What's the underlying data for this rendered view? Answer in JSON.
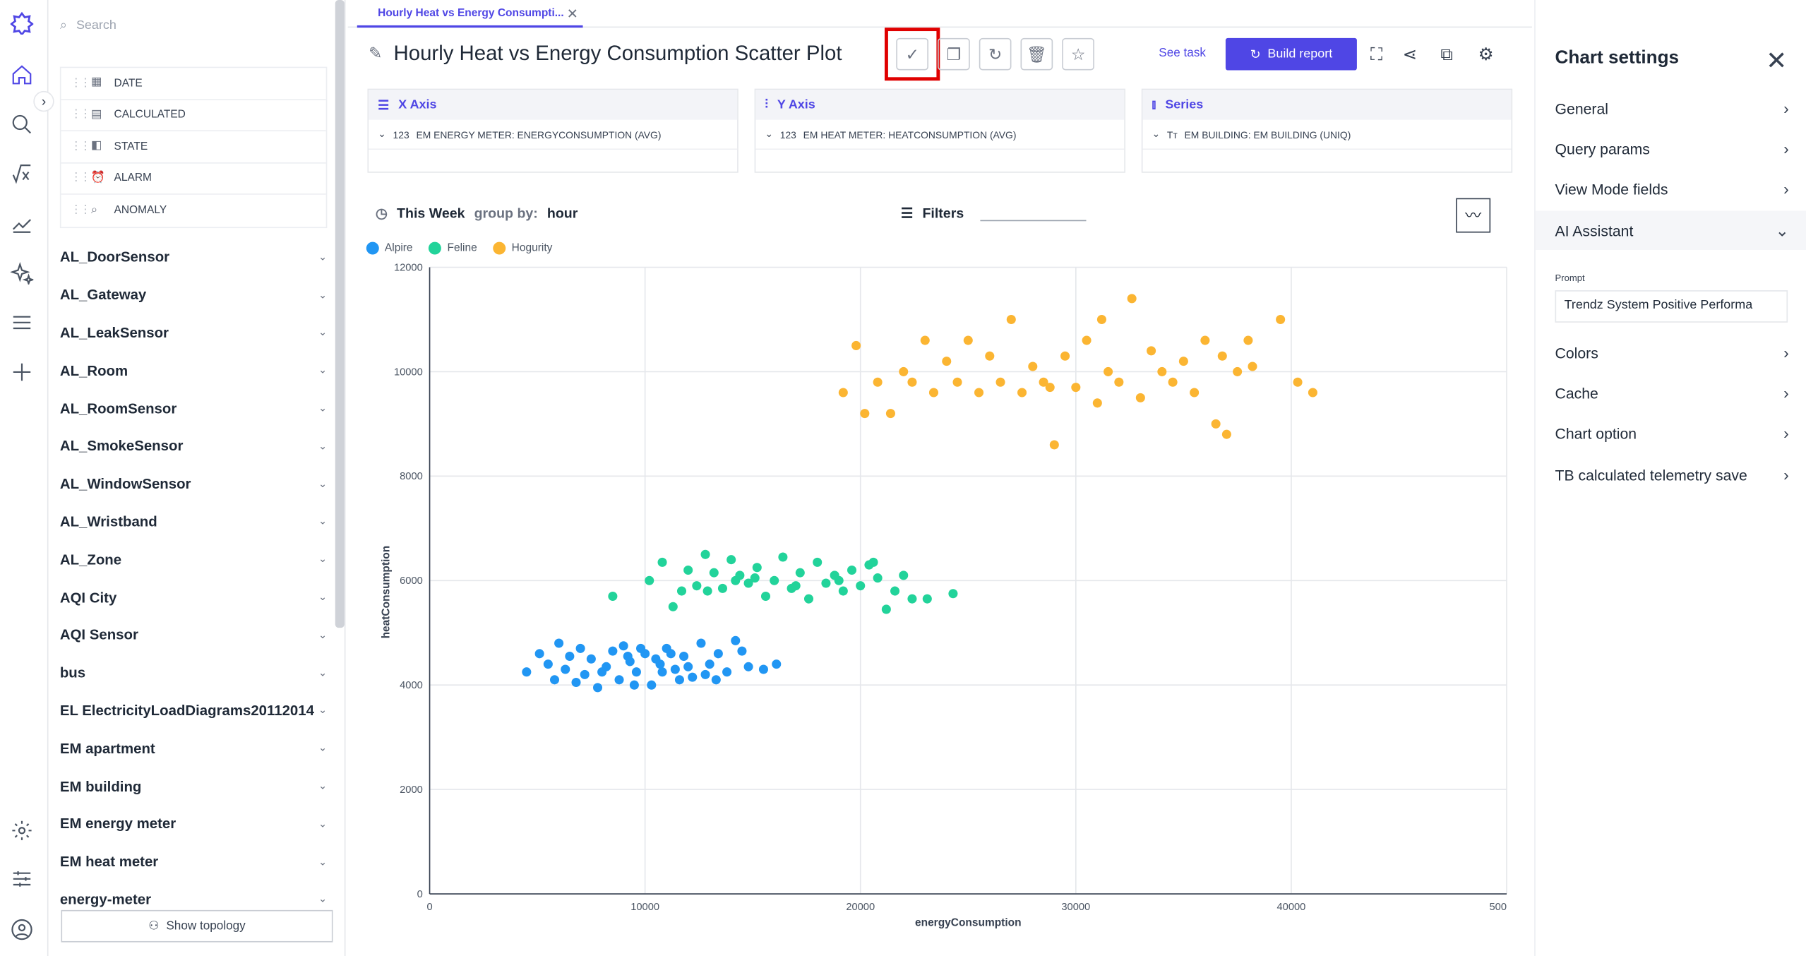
{
  "sidebar": {
    "search_placeholder": "Search",
    "fields": [
      {
        "label": "DATE",
        "icon": "calendar-icon"
      },
      {
        "label": "CALCULATED",
        "icon": "calculator-icon"
      },
      {
        "label": "STATE",
        "icon": "state-icon"
      },
      {
        "label": "ALARM",
        "icon": "alarm-icon"
      },
      {
        "label": "ANOMALY",
        "icon": "anomaly-icon"
      }
    ],
    "groups": [
      "AL_DoorSensor",
      "AL_Gateway",
      "AL_LeakSensor",
      "AL_Room",
      "AL_RoomSensor",
      "AL_SmokeSensor",
      "AL_WindowSensor",
      "AL_Wristband",
      "AL_Zone",
      "AQI City",
      "AQI Sensor",
      "bus",
      "EL ElectricityLoadDiagrams20112014",
      "EM apartment",
      "EM building",
      "EM energy meter",
      "EM heat meter",
      "energy-meter"
    ],
    "show_topology": "Show topology"
  },
  "tab": {
    "label": "Hourly Heat vs Energy Consumpti..."
  },
  "header": {
    "title": "Hourly Heat vs Energy Consumption Scatter Plot",
    "see_task": "See task",
    "build_report": "Build report"
  },
  "axes": {
    "x": {
      "title": "X Axis",
      "field": "EM ENERGY METER: ENERGYCONSUMPTION (AVG)"
    },
    "y": {
      "title": "Y Axis",
      "field": "EM HEAT METER: HEATCONSUMPTION (AVG)"
    },
    "series": {
      "title": "Series",
      "field": "EM BUILDING: EM BUILDING (UNIQ)"
    }
  },
  "query": {
    "period": "This Week",
    "group_by_label": "group by:",
    "group_by_value": "hour",
    "filters": "Filters"
  },
  "settings": {
    "title": "Chart settings",
    "items": [
      "General",
      "Query params",
      "View Mode fields",
      "AI Assistant",
      "Colors",
      "Cache",
      "Chart option",
      "TB calculated telemetry save"
    ],
    "prompt_label": "Prompt",
    "prompt_value": "Trendz System Positive Performa"
  },
  "chart_data": {
    "type": "scatter",
    "xlabel": "energyConsumption",
    "ylabel": "heatConsumption",
    "xlim": [
      0,
      50000
    ],
    "ylim": [
      0,
      12000
    ],
    "x_ticks": [
      "0",
      "10000",
      "20000",
      "30000",
      "40000",
      "500"
    ],
    "y_ticks": [
      "0",
      "2000",
      "4000",
      "6000",
      "8000",
      "10000",
      "12000"
    ],
    "legend_position": "top-left",
    "series": [
      {
        "name": "Alpire",
        "color": "#2196f3",
        "points": [
          [
            4500,
            4250
          ],
          [
            5100,
            4600
          ],
          [
            5500,
            4400
          ],
          [
            6000,
            4800
          ],
          [
            6300,
            4300
          ],
          [
            6500,
            4550
          ],
          [
            7000,
            4700
          ],
          [
            7200,
            4200
          ],
          [
            7500,
            4500
          ],
          [
            7800,
            3950
          ],
          [
            8200,
            4350
          ],
          [
            8500,
            4650
          ],
          [
            8800,
            4100
          ],
          [
            9000,
            4750
          ],
          [
            9300,
            4450
          ],
          [
            9600,
            4250
          ],
          [
            10000,
            4600
          ],
          [
            10300,
            4000
          ],
          [
            10700,
            4400
          ],
          [
            11000,
            4700
          ],
          [
            11400,
            4300
          ],
          [
            11800,
            4550
          ],
          [
            12200,
            4150
          ],
          [
            12600,
            4800
          ],
          [
            13000,
            4400
          ],
          [
            13400,
            4600
          ],
          [
            13800,
            4250
          ],
          [
            14200,
            4850
          ],
          [
            14800,
            4350
          ],
          [
            15500,
            4300
          ],
          [
            16100,
            4400
          ],
          [
            5800,
            4100
          ],
          [
            6800,
            4050
          ],
          [
            8000,
            4250
          ],
          [
            9500,
            4000
          ],
          [
            10800,
            4250
          ],
          [
            11600,
            4100
          ],
          [
            12800,
            4200
          ],
          [
            13300,
            4100
          ],
          [
            14500,
            4650
          ],
          [
            9200,
            4550
          ],
          [
            9800,
            4700
          ],
          [
            10500,
            4500
          ],
          [
            11200,
            4600
          ],
          [
            12000,
            4350
          ]
        ]
      },
      {
        "name": "Feline",
        "color": "#22d39a",
        "points": [
          [
            8500,
            5700
          ],
          [
            10200,
            6000
          ],
          [
            10800,
            6350
          ],
          [
            11300,
            5500
          ],
          [
            11700,
            5800
          ],
          [
            12000,
            6200
          ],
          [
            12400,
            5900
          ],
          [
            12800,
            6500
          ],
          [
            13200,
            6150
          ],
          [
            13600,
            5850
          ],
          [
            14000,
            6400
          ],
          [
            14400,
            6100
          ],
          [
            14800,
            5950
          ],
          [
            15200,
            6250
          ],
          [
            15600,
            5700
          ],
          [
            16000,
            6000
          ],
          [
            16400,
            6450
          ],
          [
            16800,
            5850
          ],
          [
            17200,
            6150
          ],
          [
            17600,
            5650
          ],
          [
            18000,
            6350
          ],
          [
            18400,
            5950
          ],
          [
            18800,
            6100
          ],
          [
            19200,
            5800
          ],
          [
            19600,
            6200
          ],
          [
            20000,
            5900
          ],
          [
            20400,
            6300
          ],
          [
            20800,
            6050
          ],
          [
            21200,
            5450
          ],
          [
            21600,
            5800
          ],
          [
            22000,
            6100
          ],
          [
            22400,
            5650
          ],
          [
            23100,
            5650
          ],
          [
            24300,
            5750
          ],
          [
            12900,
            5800
          ],
          [
            15100,
            6050
          ],
          [
            17000,
            5900
          ],
          [
            19000,
            6000
          ],
          [
            20600,
            6350
          ],
          [
            14200,
            6000
          ]
        ]
      },
      {
        "name": "Hogurity",
        "color": "#fbb532",
        "points": [
          [
            19200,
            9600
          ],
          [
            19800,
            10500
          ],
          [
            20200,
            9200
          ],
          [
            20800,
            9800
          ],
          [
            21400,
            9200
          ],
          [
            22000,
            10000
          ],
          [
            22400,
            9800
          ],
          [
            23000,
            10600
          ],
          [
            23400,
            9600
          ],
          [
            24000,
            10200
          ],
          [
            24500,
            9800
          ],
          [
            25000,
            10600
          ],
          [
            25500,
            9600
          ],
          [
            26000,
            10300
          ],
          [
            26500,
            9800
          ],
          [
            27000,
            11000
          ],
          [
            27500,
            9600
          ],
          [
            28000,
            10100
          ],
          [
            28500,
            9800
          ],
          [
            29000,
            8600
          ],
          [
            29500,
            10300
          ],
          [
            30000,
            9700
          ],
          [
            30500,
            10600
          ],
          [
            31000,
            9400
          ],
          [
            31500,
            10000
          ],
          [
            32000,
            9800
          ],
          [
            32600,
            11400
          ],
          [
            33000,
            9500
          ],
          [
            33500,
            10400
          ],
          [
            34000,
            10000
          ],
          [
            34500,
            9800
          ],
          [
            35000,
            10200
          ],
          [
            35500,
            9600
          ],
          [
            36000,
            10600
          ],
          [
            36500,
            9000
          ],
          [
            37000,
            8800
          ],
          [
            37500,
            10000
          ],
          [
            38000,
            10600
          ],
          [
            39500,
            11000
          ],
          [
            40300,
            9800
          ],
          [
            41000,
            9600
          ],
          [
            38200,
            10100
          ],
          [
            36800,
            10300
          ],
          [
            31200,
            11000
          ],
          [
            28800,
            9700
          ]
        ]
      }
    ]
  }
}
